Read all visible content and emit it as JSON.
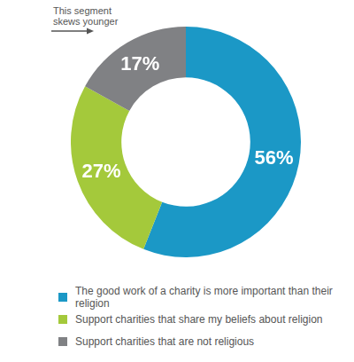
{
  "chart_data": {
    "type": "doughnut",
    "categories": [
      "The good work of a charity is more important than their religion",
      "Support charities that share my beliefs about religion",
      "Support charities that are not religious"
    ],
    "values": [
      56,
      27,
      17
    ],
    "value_labels": [
      "56%",
      "27%",
      "17%"
    ],
    "colors": [
      "#1b98c6",
      "#a4c93b",
      "#808184"
    ],
    "data_labels": true,
    "legend": "bottom",
    "annotation": "This segment skews younger"
  }
}
